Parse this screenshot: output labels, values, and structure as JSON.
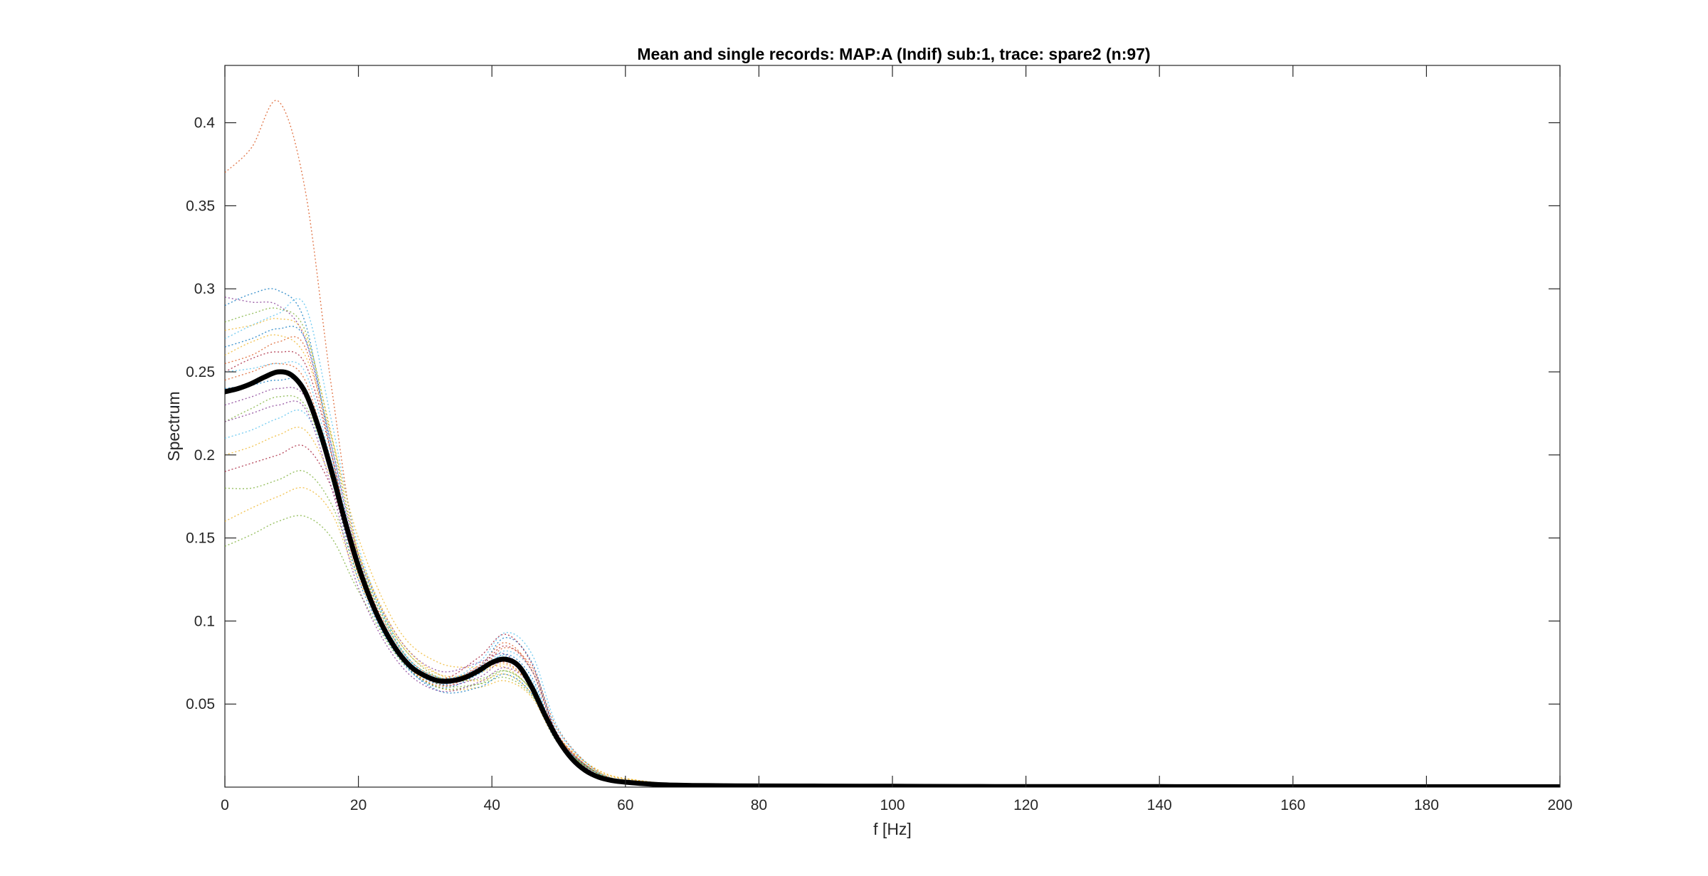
{
  "chart_data": {
    "type": "line",
    "title": "Mean and single records: MAP:A (Indif) sub:1, trace: spare2 (n:97)",
    "xlabel": "f [Hz]",
    "ylabel": "Spectrum",
    "xlim": [
      0,
      200
    ],
    "ylim": [
      0,
      0.4345
    ],
    "xticks": [
      0,
      20,
      40,
      60,
      80,
      100,
      120,
      140,
      160,
      180,
      200
    ],
    "yticks": [
      0.05,
      0.1,
      0.15,
      0.2,
      0.25,
      0.3,
      0.35,
      0.4
    ],
    "grid": false,
    "legend": "none",
    "record_count": 97,
    "mean_series": {
      "style": "solid",
      "color": "#000000",
      "x": [
        0,
        2,
        4,
        6,
        8,
        10,
        12,
        14,
        16,
        18,
        20,
        22,
        24,
        26,
        28,
        30,
        32,
        34,
        36,
        38,
        40,
        42,
        44,
        46,
        48,
        50,
        52,
        54,
        56,
        58,
        60,
        65,
        70,
        75,
        80,
        90,
        100,
        110,
        120,
        140,
        160,
        180,
        200
      ],
      "y": [
        0.238,
        0.24,
        0.243,
        0.247,
        0.25,
        0.248,
        0.238,
        0.217,
        0.19,
        0.16,
        0.133,
        0.111,
        0.094,
        0.081,
        0.072,
        0.067,
        0.064,
        0.064,
        0.066,
        0.07,
        0.075,
        0.077,
        0.073,
        0.06,
        0.043,
        0.028,
        0.017,
        0.01,
        0.006,
        0.004,
        0.003,
        0.0015,
        0.001,
        0.0008,
        0.0007,
        0.0006,
        0.0005,
        0.0004,
        0.0003,
        0.0003,
        0.0002,
        0.0002,
        0.0002
      ]
    },
    "single_records": [
      {
        "color": "#d95319",
        "x": [
          0,
          4,
          8,
          12,
          16,
          20,
          26,
          32,
          38,
          42,
          46,
          50,
          56,
          62,
          70,
          80,
          100,
          140,
          200
        ],
        "y": [
          0.37,
          0.385,
          0.413,
          0.36,
          0.24,
          0.14,
          0.085,
          0.066,
          0.07,
          0.075,
          0.06,
          0.03,
          0.008,
          0.003,
          0.0012,
          0.0008,
          0.0005,
          0.0003,
          0.0002
        ]
      },
      {
        "color": "#0072bd",
        "x": [
          0,
          4,
          8,
          12,
          16,
          20,
          26,
          32,
          38,
          42,
          46,
          50,
          56,
          62,
          70,
          80,
          100,
          140,
          200
        ],
        "y": [
          0.29,
          0.297,
          0.299,
          0.28,
          0.2,
          0.135,
          0.082,
          0.062,
          0.072,
          0.09,
          0.075,
          0.03,
          0.008,
          0.003,
          0.0012,
          0.0008,
          0.0005,
          0.0003,
          0.0002
        ]
      },
      {
        "color": "#7e2f8e",
        "x": [
          0,
          4,
          8,
          12,
          16,
          20,
          26,
          32,
          38,
          42,
          46,
          50,
          56,
          62,
          70,
          80,
          100,
          140,
          200
        ],
        "y": [
          0.295,
          0.292,
          0.29,
          0.27,
          0.205,
          0.14,
          0.09,
          0.07,
          0.075,
          0.08,
          0.062,
          0.028,
          0.007,
          0.003,
          0.0012,
          0.0008,
          0.0005,
          0.0003,
          0.0002
        ]
      },
      {
        "color": "#77ac30",
        "x": [
          0,
          4,
          8,
          12,
          16,
          20,
          26,
          32,
          38,
          42,
          46,
          50,
          56,
          62,
          70,
          80,
          100,
          140,
          200
        ],
        "y": [
          0.28,
          0.285,
          0.288,
          0.275,
          0.21,
          0.14,
          0.085,
          0.066,
          0.07,
          0.078,
          0.06,
          0.027,
          0.007,
          0.003,
          0.0012,
          0.0008,
          0.0005,
          0.0003,
          0.0002
        ]
      },
      {
        "color": "#4dbeee",
        "x": [
          0,
          4,
          8,
          12,
          16,
          20,
          26,
          32,
          38,
          42,
          46,
          50,
          56,
          62,
          70,
          80,
          100,
          140,
          200
        ],
        "y": [
          0.27,
          0.278,
          0.285,
          0.29,
          0.22,
          0.145,
          0.086,
          0.064,
          0.075,
          0.093,
          0.08,
          0.035,
          0.009,
          0.003,
          0.0012,
          0.0008,
          0.0005,
          0.0003,
          0.0002
        ]
      },
      {
        "color": "#edb120",
        "x": [
          0,
          4,
          8,
          12,
          16,
          20,
          26,
          32,
          38,
          42,
          46,
          50,
          56,
          62,
          70,
          80,
          100,
          140,
          200
        ],
        "y": [
          0.26,
          0.268,
          0.272,
          0.26,
          0.21,
          0.15,
          0.095,
          0.075,
          0.072,
          0.072,
          0.058,
          0.03,
          0.01,
          0.004,
          0.0013,
          0.0008,
          0.0005,
          0.0003,
          0.0002
        ]
      },
      {
        "color": "#a2142f",
        "x": [
          0,
          4,
          8,
          12,
          16,
          20,
          26,
          32,
          38,
          42,
          46,
          50,
          56,
          62,
          70,
          80,
          100,
          140,
          200
        ],
        "y": [
          0.25,
          0.258,
          0.262,
          0.255,
          0.2,
          0.13,
          0.082,
          0.065,
          0.078,
          0.092,
          0.074,
          0.03,
          0.008,
          0.003,
          0.0012,
          0.0008,
          0.0005,
          0.0003,
          0.0002
        ]
      },
      {
        "color": "#d95319",
        "x": [
          0,
          4,
          8,
          12,
          16,
          20,
          26,
          32,
          38,
          42,
          46,
          50,
          56,
          62,
          70,
          80,
          100,
          140,
          200
        ],
        "y": [
          0.245,
          0.25,
          0.255,
          0.245,
          0.19,
          0.128,
          0.08,
          0.063,
          0.073,
          0.087,
          0.07,
          0.03,
          0.008,
          0.003,
          0.0012,
          0.0008,
          0.0005,
          0.0003,
          0.0002
        ]
      },
      {
        "color": "#0072bd",
        "x": [
          0,
          4,
          8,
          12,
          16,
          20,
          26,
          32,
          38,
          42,
          46,
          50,
          56,
          62,
          70,
          80,
          100,
          140,
          200
        ],
        "y": [
          0.24,
          0.242,
          0.245,
          0.24,
          0.185,
          0.125,
          0.078,
          0.06,
          0.068,
          0.08,
          0.066,
          0.029,
          0.008,
          0.003,
          0.0012,
          0.0008,
          0.0005,
          0.0003,
          0.0002
        ]
      },
      {
        "color": "#7e2f8e",
        "x": [
          0,
          4,
          8,
          12,
          16,
          20,
          26,
          32,
          38,
          42,
          46,
          50,
          56,
          62,
          70,
          80,
          100,
          140,
          200
        ],
        "y": [
          0.23,
          0.235,
          0.24,
          0.235,
          0.19,
          0.13,
          0.082,
          0.062,
          0.066,
          0.076,
          0.062,
          0.028,
          0.007,
          0.003,
          0.0012,
          0.0008,
          0.0005,
          0.0003,
          0.0002
        ]
      },
      {
        "color": "#77ac30",
        "x": [
          0,
          4,
          8,
          12,
          16,
          20,
          26,
          32,
          38,
          42,
          46,
          50,
          56,
          62,
          70,
          80,
          100,
          140,
          200
        ],
        "y": [
          0.22,
          0.228,
          0.235,
          0.23,
          0.188,
          0.135,
          0.088,
          0.066,
          0.065,
          0.07,
          0.058,
          0.027,
          0.008,
          0.003,
          0.0012,
          0.0008,
          0.0005,
          0.0003,
          0.0002
        ]
      },
      {
        "color": "#4dbeee",
        "x": [
          0,
          4,
          8,
          12,
          16,
          20,
          26,
          32,
          38,
          42,
          46,
          50,
          56,
          62,
          70,
          80,
          100,
          140,
          200
        ],
        "y": [
          0.21,
          0.215,
          0.222,
          0.225,
          0.19,
          0.138,
          0.086,
          0.064,
          0.07,
          0.082,
          0.07,
          0.033,
          0.009,
          0.003,
          0.0012,
          0.0008,
          0.0005,
          0.0003,
          0.0002
        ]
      },
      {
        "color": "#edb120",
        "x": [
          0,
          4,
          8,
          12,
          16,
          20,
          26,
          32,
          38,
          42,
          46,
          50,
          56,
          62,
          70,
          80,
          100,
          140,
          200
        ],
        "y": [
          0.2,
          0.205,
          0.212,
          0.215,
          0.185,
          0.14,
          0.09,
          0.068,
          0.064,
          0.068,
          0.056,
          0.028,
          0.009,
          0.004,
          0.0013,
          0.0008,
          0.0005,
          0.0003,
          0.0002
        ]
      },
      {
        "color": "#a2142f",
        "x": [
          0,
          4,
          8,
          12,
          16,
          20,
          26,
          32,
          38,
          42,
          46,
          50,
          56,
          62,
          70,
          80,
          100,
          140,
          200
        ],
        "y": [
          0.19,
          0.195,
          0.2,
          0.205,
          0.18,
          0.13,
          0.083,
          0.064,
          0.072,
          0.085,
          0.07,
          0.031,
          0.008,
          0.003,
          0.0012,
          0.0008,
          0.0005,
          0.0003,
          0.0002
        ]
      },
      {
        "color": "#77ac30",
        "x": [
          0,
          4,
          8,
          12,
          16,
          20,
          26,
          32,
          38,
          42,
          46,
          50,
          56,
          62,
          70,
          80,
          100,
          140,
          200
        ],
        "y": [
          0.18,
          0.18,
          0.185,
          0.19,
          0.17,
          0.128,
          0.082,
          0.062,
          0.062,
          0.066,
          0.055,
          0.027,
          0.008,
          0.003,
          0.0012,
          0.0008,
          0.0005,
          0.0003,
          0.0002
        ]
      },
      {
        "color": "#edb120",
        "x": [
          0,
          4,
          8,
          12,
          16,
          20,
          26,
          32,
          38,
          42,
          46,
          50,
          56,
          62,
          70,
          80,
          100,
          140,
          200
        ],
        "y": [
          0.16,
          0.168,
          0.175,
          0.18,
          0.165,
          0.125,
          0.08,
          0.06,
          0.06,
          0.064,
          0.054,
          0.026,
          0.008,
          0.003,
          0.0012,
          0.0008,
          0.0005,
          0.0003,
          0.0002
        ]
      },
      {
        "color": "#77ac30",
        "x": [
          0,
          4,
          8,
          12,
          16,
          20,
          26,
          32,
          38,
          42,
          46,
          50,
          56,
          62,
          70,
          80,
          100,
          140,
          200
        ],
        "y": [
          0.145,
          0.152,
          0.16,
          0.163,
          0.15,
          0.118,
          0.078,
          0.06,
          0.062,
          0.07,
          0.058,
          0.027,
          0.008,
          0.003,
          0.0012,
          0.0008,
          0.0005,
          0.0003,
          0.0002
        ]
      },
      {
        "color": "#0072bd",
        "x": [
          0,
          4,
          8,
          12,
          16,
          20,
          26,
          32,
          38,
          42,
          46,
          50,
          56,
          62,
          70,
          80,
          100,
          140,
          200
        ],
        "y": [
          0.265,
          0.27,
          0.276,
          0.27,
          0.205,
          0.135,
          0.08,
          0.058,
          0.06,
          0.068,
          0.056,
          0.026,
          0.007,
          0.003,
          0.0012,
          0.0008,
          0.0005,
          0.0003,
          0.0002
        ]
      },
      {
        "color": "#d95319",
        "x": [
          0,
          4,
          8,
          12,
          16,
          20,
          26,
          32,
          38,
          42,
          46,
          50,
          56,
          62,
          70,
          80,
          100,
          140,
          200
        ],
        "y": [
          0.255,
          0.26,
          0.268,
          0.265,
          0.2,
          0.132,
          0.08,
          0.061,
          0.07,
          0.084,
          0.072,
          0.034,
          0.009,
          0.003,
          0.0012,
          0.0008,
          0.0005,
          0.0003,
          0.0002
        ]
      },
      {
        "color": "#7e2f8e",
        "x": [
          0,
          4,
          8,
          12,
          16,
          20,
          26,
          32,
          38,
          42,
          46,
          50,
          56,
          62,
          70,
          80,
          100,
          140,
          200
        ],
        "y": [
          0.22,
          0.225,
          0.23,
          0.228,
          0.18,
          0.12,
          0.075,
          0.058,
          0.063,
          0.072,
          0.06,
          0.027,
          0.007,
          0.003,
          0.0012,
          0.0008,
          0.0005,
          0.0003,
          0.0002
        ]
      },
      {
        "color": "#4dbeee",
        "x": [
          0,
          4,
          8,
          12,
          16,
          20,
          26,
          32,
          38,
          42,
          46,
          50,
          56,
          62,
          70,
          80,
          100,
          140,
          200
        ],
        "y": [
          0.25,
          0.252,
          0.255,
          0.25,
          0.195,
          0.133,
          0.084,
          0.066,
          0.071,
          0.079,
          0.064,
          0.029,
          0.008,
          0.003,
          0.0012,
          0.0008,
          0.0005,
          0.0003,
          0.0002
        ]
      },
      {
        "color": "#edb120",
        "x": [
          0,
          4,
          8,
          12,
          16,
          20,
          26,
          32,
          38,
          42,
          46,
          50,
          56,
          62,
          70,
          80,
          100,
          140,
          200
        ],
        "y": [
          0.275,
          0.278,
          0.282,
          0.272,
          0.212,
          0.142,
          0.088,
          0.068,
          0.069,
          0.074,
          0.06,
          0.03,
          0.01,
          0.004,
          0.0013,
          0.0008,
          0.0005,
          0.0003,
          0.0002
        ]
      }
    ]
  }
}
